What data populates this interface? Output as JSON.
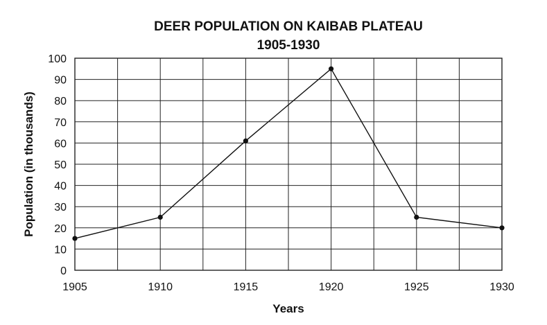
{
  "chart_data": {
    "type": "line",
    "title": "DEER POPULATION ON KAIBAB PLATEAU",
    "subtitle": "1905-1930",
    "xlabel": "Years",
    "ylabel": "Population (in thousands)",
    "xlim": [
      1905,
      1930
    ],
    "ylim": [
      0,
      100
    ],
    "x_ticks": [
      1905,
      1910,
      1915,
      1920,
      1925,
      1930
    ],
    "x_grid_step": 2.5,
    "y_ticks": [
      0,
      10,
      20,
      30,
      40,
      50,
      60,
      70,
      80,
      90,
      100
    ],
    "grid": true,
    "series": [
      {
        "x": [
          1905,
          1910,
          1915,
          1920,
          1925,
          1930
        ],
        "y": [
          15,
          25,
          61,
          95,
          25,
          20
        ]
      }
    ]
  }
}
